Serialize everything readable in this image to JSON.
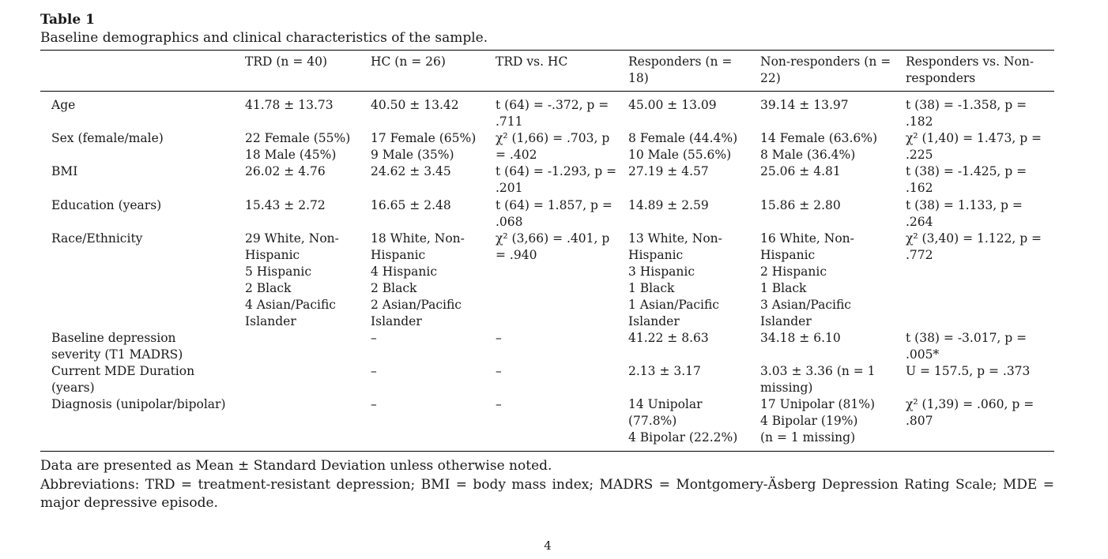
{
  "table": {
    "label": "Table 1",
    "caption": "Baseline demographics and clinical characteristics of the sample.",
    "headers": [
      "",
      "TRD (n = 40)",
      "HC (n = 26)",
      "TRD vs. HC",
      "Responders (n = 18)",
      "Non-responders (n = 22)",
      "Responders vs. Non-responders"
    ],
    "rows": [
      {
        "label": "Age",
        "cells": [
          [
            "41.78 ± 13.73"
          ],
          [
            "40.50 ± 13.42"
          ],
          [
            "t (64) = -.372, p = .711"
          ],
          [
            "45.00 ± 13.09"
          ],
          [
            "39.14 ± 13.97"
          ],
          [
            "t (38) = -1.358, p = .182"
          ]
        ]
      },
      {
        "label": "Sex (female/male)",
        "cells": [
          [
            "22 Female (55%)",
            "18 Male (45%)"
          ],
          [
            "17 Female (65%)",
            "9 Male (35%)"
          ],
          [
            "χ² (1,66) = .703, p = .402"
          ],
          [
            "8 Female (44.4%)",
            "10 Male (55.6%)"
          ],
          [
            "14 Female (63.6%)",
            "8 Male (36.4%)"
          ],
          [
            "χ² (1,40) = 1.473, p = .225"
          ]
        ]
      },
      {
        "label": "BMI",
        "cells": [
          [
            "26.02 ± 4.76"
          ],
          [
            "24.62 ± 3.45"
          ],
          [
            "t (64) = -1.293, p = .201"
          ],
          [
            "27.19 ± 4.57"
          ],
          [
            "25.06 ± 4.81"
          ],
          [
            "t (38) = -1.425, p = .162"
          ]
        ]
      },
      {
        "label": "Education (years)",
        "cells": [
          [
            "15.43 ± 2.72"
          ],
          [
            "16.65 ± 2.48"
          ],
          [
            "t (64) = 1.857, p = .068"
          ],
          [
            "14.89 ± 2.59"
          ],
          [
            "15.86 ± 2.80"
          ],
          [
            "t (38) = 1.133, p = .264"
          ]
        ]
      },
      {
        "label": "Race/Ethnicity",
        "cells": [
          [
            "29 White, Non-",
            "Hispanic",
            "5 Hispanic",
            "2 Black",
            "4 Asian/Pacific",
            "Islander"
          ],
          [
            "18 White, Non-",
            "Hispanic",
            "4 Hispanic",
            "2 Black",
            "2 Asian/Pacific",
            "Islander"
          ],
          [
            "χ² (3,66) = .401, p",
            "= .940"
          ],
          [
            "13 White, Non-",
            "Hispanic",
            "3 Hispanic",
            "1 Black",
            "1 Asian/Pacific",
            "Islander"
          ],
          [
            "16 White, Non-",
            "Hispanic",
            "2 Hispanic",
            "1 Black",
            "3 Asian/Pacific",
            "Islander"
          ],
          [
            "χ² (3,40) = 1.122, p =",
            ".772"
          ]
        ]
      },
      {
        "label": "Baseline depression severity (T1 MADRS)",
        "cells": [
          [
            ""
          ],
          [
            "–"
          ],
          [
            "–"
          ],
          [
            "41.22 ± 8.63"
          ],
          [
            "34.18 ± 6.10"
          ],
          [
            "t (38) = -3.017, p =",
            ".005*"
          ]
        ]
      },
      {
        "label": "Current MDE Duration (years)",
        "cells": [
          [
            ""
          ],
          [
            "–"
          ],
          [
            "–"
          ],
          [
            "2.13 ± 3.17"
          ],
          [
            "3.03 ± 3.36 (n = 1",
            "missing)"
          ],
          [
            "U = 157.5, p = .373"
          ]
        ]
      },
      {
        "label": "Diagnosis (unipolar/bipolar)",
        "cells": [
          [
            ""
          ],
          [
            "–"
          ],
          [
            "–"
          ],
          [
            "14 Unipolar",
            "(77.8%)",
            "4 Bipolar (22.2%)"
          ],
          [
            "17 Unipolar (81%)",
            "4 Bipolar (19%)",
            "(n = 1 missing)"
          ],
          [
            "χ² (1,39) = .060, p =",
            ".807"
          ]
        ]
      }
    ]
  },
  "footnotes": {
    "data_note": "Data are presented as Mean ± Standard Deviation unless otherwise noted.",
    "abbreviations": "Abbreviations: TRD = treatment-resistant depression; BMI = body mass index; MADRS = Montgomery-Äsberg Depression Rating Scale; MDE = major depressive episode."
  },
  "page_number": "4"
}
